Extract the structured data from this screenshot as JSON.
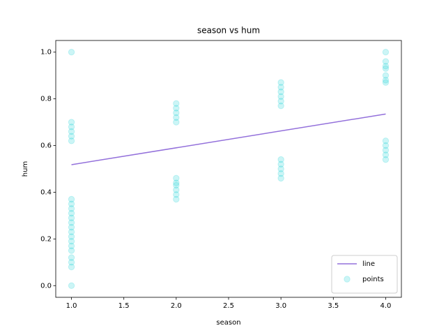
{
  "chart_data": {
    "type": "scatter",
    "title": "season vs hum",
    "x_label": "season",
    "y_label": "hum",
    "xlim": [
      0.85,
      4.15
    ],
    "ylim": [
      -0.05,
      1.05
    ],
    "xticks": [
      {
        "value": 1,
        "label": "1.0"
      },
      {
        "value": 1.5,
        "label": "1.5"
      },
      {
        "value": 2,
        "label": "2.0"
      },
      {
        "value": 2.5,
        "label": "2.5"
      },
      {
        "value": 3,
        "label": "3.0"
      },
      {
        "value": 3.5,
        "label": "3.5"
      },
      {
        "value": 4,
        "label": "4.0"
      }
    ],
    "yticks": [
      {
        "value": 0,
        "label": "0.0"
      },
      {
        "value": 0.2,
        "label": "0.2"
      },
      {
        "value": 0.4,
        "label": "0.4"
      },
      {
        "value": 0.6,
        "label": "0.6"
      },
      {
        "value": 0.8,
        "label": "0.8"
      },
      {
        "value": 1,
        "label": "1.0"
      }
    ],
    "legend": "lower right",
    "series": [
      {
        "name": "line",
        "mark": "line",
        "color": "#9370db",
        "x": [
          1,
          4
        ],
        "values": [
          0.518,
          0.735
        ]
      },
      {
        "name": "points",
        "mark": "points",
        "color": "#00ced1",
        "alpha": 0.2,
        "x": [
          1,
          1,
          1,
          1,
          1,
          1,
          1,
          1,
          1,
          1,
          1,
          1,
          1,
          1,
          1,
          1,
          1,
          1,
          1,
          1,
          1,
          1,
          2,
          2,
          2,
          2,
          2,
          2,
          2,
          2,
          2,
          2,
          2,
          3,
          3,
          3,
          3,
          3,
          3,
          3,
          3,
          3,
          3,
          3,
          4,
          4,
          4,
          4,
          4,
          4,
          4,
          4,
          4,
          4,
          4,
          4
        ],
        "values": [
          0,
          0.08,
          0.1,
          0.12,
          0.15,
          0.17,
          0.19,
          0.21,
          0.23,
          0.25,
          0.27,
          0.29,
          0.31,
          0.33,
          0.35,
          0.37,
          0.62,
          0.64,
          0.66,
          0.68,
          0.7,
          1,
          0.37,
          0.39,
          0.41,
          0.43,
          0.44,
          0.46,
          0.7,
          0.72,
          0.74,
          0.76,
          0.78,
          0.46,
          0.48,
          0.5,
          0.52,
          0.54,
          0.77,
          0.79,
          0.81,
          0.83,
          0.85,
          0.87,
          0.54,
          0.56,
          0.58,
          0.6,
          0.62,
          0.87,
          0.88,
          0.9,
          0.93,
          0.94,
          0.96,
          1
        ]
      }
    ]
  }
}
